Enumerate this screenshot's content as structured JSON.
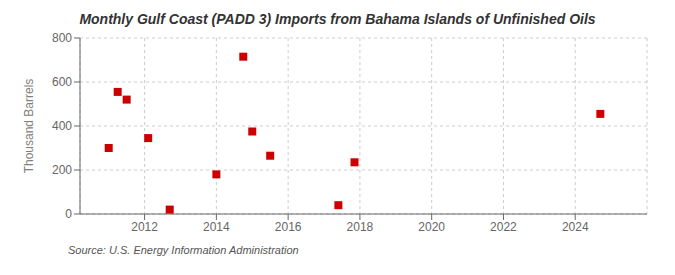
{
  "chart_data": {
    "type": "scatter",
    "title": "Monthly Gulf Coast (PADD 3) Imports from Bahama Islands of Unfinished Oils",
    "ylabel": "Thousand Barrels",
    "annotations": [
      "Source: U.S. Energy Information Administration"
    ],
    "x": [
      2011.0,
      2011.25,
      2011.5,
      2012.1,
      2012.7,
      2014.0,
      2014.75,
      2015.0,
      2015.5,
      2017.4,
      2017.85,
      2024.7
    ],
    "values": [
      300,
      555,
      520,
      345,
      20,
      180,
      715,
      375,
      265,
      40,
      235,
      455
    ],
    "color": "#cc0000",
    "marker": "square",
    "xlim": [
      2010.2,
      2026.0
    ],
    "ylim": [
      0,
      800
    ],
    "xticks": [
      2012,
      2014,
      2016,
      2018,
      2020,
      2022,
      2024
    ],
    "yticks": [
      0,
      200,
      400,
      600,
      800
    ],
    "grid": true
  }
}
